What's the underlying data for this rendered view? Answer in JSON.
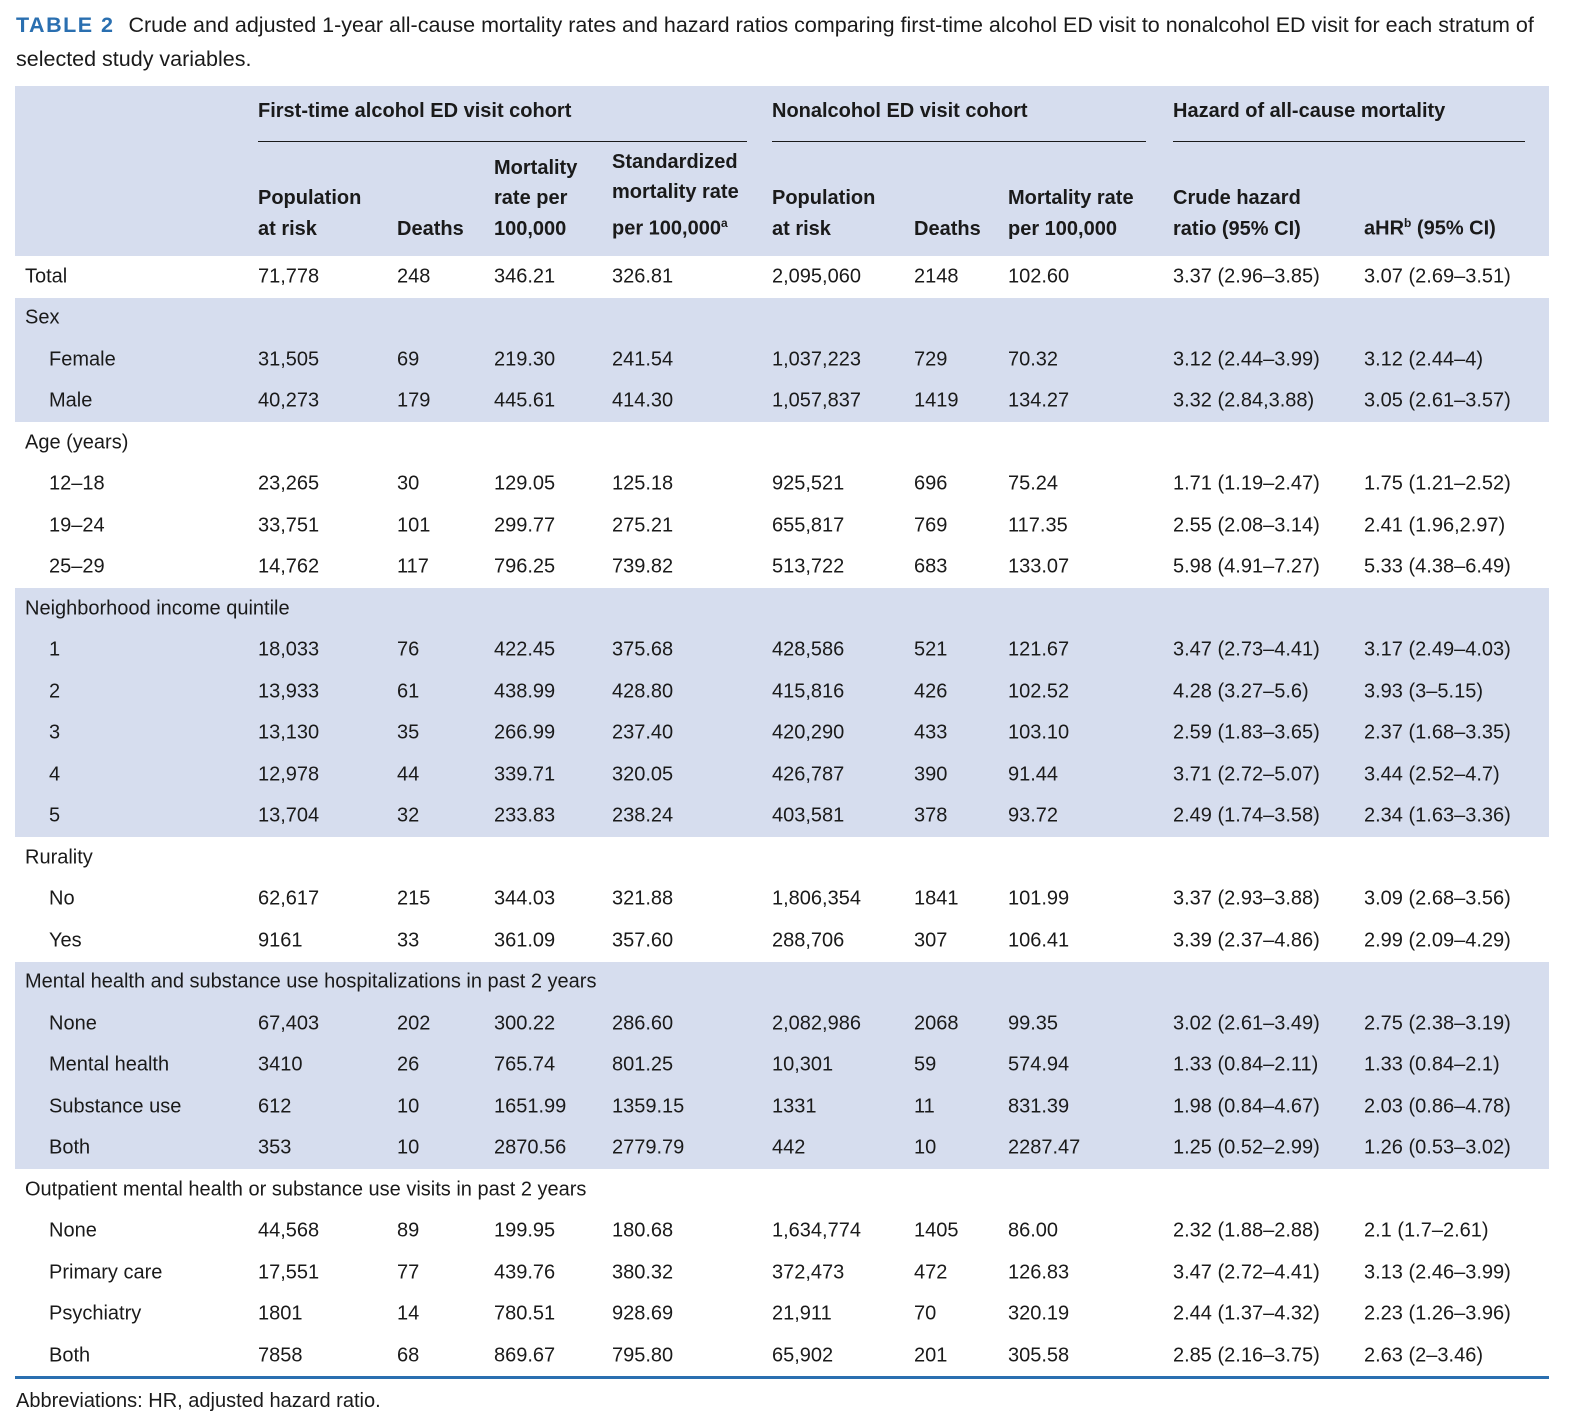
{
  "caption": {
    "label": "TABLE 2",
    "text": "Crude and adjusted 1-year all-cause mortality rates and hazard ratios comparing first-time alcohol ED visit to nonalcohol ED visit for each stratum of selected study variables."
  },
  "groups": {
    "alcohol": "First-time alcohol ED visit cohort",
    "nonalcohol": "Nonalcohol ED visit cohort",
    "hazard": "Hazard of all-cause mortality"
  },
  "columns": {
    "c1_l1": "Population",
    "c1_l2": "at risk",
    "c2_l1": "Deaths",
    "c3_l1": "Mortality",
    "c3_l2": "rate per",
    "c3_l3": "100,000",
    "c4_l1": "Standardized",
    "c4_l2": "mortality rate",
    "c4_l3": "per 100,000",
    "c4_sup": "a",
    "c5_l1": "Population",
    "c5_l2": "at risk",
    "c6_l1": "Deaths",
    "c7_l1": "Mortality rate",
    "c7_l2": "per 100,000",
    "c8_l1": "Crude hazard",
    "c8_l2": "ratio (95% CI)",
    "c9_pre": "aHR",
    "c9_sup": "b",
    "c9_post": " (95% CI)"
  },
  "rows": [
    {
      "type": "total",
      "label": "Total",
      "v": [
        "71,778",
        "248",
        "346.21",
        "326.81",
        "2,095,060",
        "2148",
        "102.60",
        "3.37 (2.96–3.85)",
        "3.07 (2.69–3.51)"
      ]
    },
    {
      "type": "section",
      "label": "Sex"
    },
    {
      "type": "sub",
      "label": "Female",
      "v": [
        "31,505",
        "69",
        "219.30",
        "241.54",
        "1,037,223",
        "729",
        "70.32",
        "3.12 (2.44–3.99)",
        "3.12 (2.44–4)"
      ]
    },
    {
      "type": "sub",
      "label": "Male",
      "v": [
        "40,273",
        "179",
        "445.61",
        "414.30",
        "1,057,837",
        "1419",
        "134.27",
        "3.32 (2.84,3.88)",
        "3.05 (2.61–3.57)"
      ]
    },
    {
      "type": "section",
      "label": "Age (years)"
    },
    {
      "type": "sub",
      "label": "12–18",
      "v": [
        "23,265",
        "30",
        "129.05",
        "125.18",
        "925,521",
        "696",
        "75.24",
        "1.71 (1.19–2.47)",
        "1.75 (1.21–2.52)"
      ]
    },
    {
      "type": "sub",
      "label": "19–24",
      "v": [
        "33,751",
        "101",
        "299.77",
        "275.21",
        "655,817",
        "769",
        "117.35",
        "2.55 (2.08–3.14)",
        "2.41 (1.96,2.97)"
      ]
    },
    {
      "type": "sub",
      "label": "25–29",
      "v": [
        "14,762",
        "117",
        "796.25",
        "739.82",
        "513,722",
        "683",
        "133.07",
        "5.98 (4.91–7.27)",
        "5.33 (4.38–6.49)"
      ]
    },
    {
      "type": "section",
      "label": "Neighborhood income quintile"
    },
    {
      "type": "sub",
      "label": "1",
      "v": [
        "18,033",
        "76",
        "422.45",
        "375.68",
        "428,586",
        "521",
        "121.67",
        "3.47 (2.73–4.41)",
        "3.17 (2.49–4.03)"
      ]
    },
    {
      "type": "sub",
      "label": "2",
      "v": [
        "13,933",
        "61",
        "438.99",
        "428.80",
        "415,816",
        "426",
        "102.52",
        "4.28 (3.27–5.6)",
        "3.93 (3–5.15)"
      ]
    },
    {
      "type": "sub",
      "label": "3",
      "v": [
        "13,130",
        "35",
        "266.99",
        "237.40",
        "420,290",
        "433",
        "103.10",
        "2.59 (1.83–3.65)",
        "2.37 (1.68–3.35)"
      ]
    },
    {
      "type": "sub",
      "label": "4",
      "v": [
        "12,978",
        "44",
        "339.71",
        "320.05",
        "426,787",
        "390",
        "91.44",
        "3.71 (2.72–5.07)",
        "3.44 (2.52–4.7)"
      ]
    },
    {
      "type": "sub",
      "label": "5",
      "v": [
        "13,704",
        "32",
        "233.83",
        "238.24",
        "403,581",
        "378",
        "93.72",
        "2.49 (1.74–3.58)",
        "2.34 (1.63–3.36)"
      ]
    },
    {
      "type": "section",
      "label": "Rurality"
    },
    {
      "type": "sub",
      "label": "No",
      "v": [
        "62,617",
        "215",
        "344.03",
        "321.88",
        "1,806,354",
        "1841",
        "101.99",
        "3.37 (2.93–3.88)",
        "3.09 (2.68–3.56)"
      ]
    },
    {
      "type": "sub",
      "label": "Yes",
      "v": [
        "9161",
        "33",
        "361.09",
        "357.60",
        "288,706",
        "307",
        "106.41",
        "3.39 (2.37–4.86)",
        "2.99 (2.09–4.29)"
      ]
    },
    {
      "type": "section",
      "label": "Mental health and substance use hospitalizations in past 2 years"
    },
    {
      "type": "sub",
      "label": "None",
      "v": [
        "67,403",
        "202",
        "300.22",
        "286.60",
        "2,082,986",
        "2068",
        "99.35",
        "3.02 (2.61–3.49)",
        "2.75 (2.38–3.19)"
      ]
    },
    {
      "type": "sub",
      "label": "Mental health",
      "v": [
        "3410",
        "26",
        "765.74",
        "801.25",
        "10,301",
        "59",
        "574.94",
        "1.33 (0.84–2.11)",
        "1.33 (0.84–2.1)"
      ]
    },
    {
      "type": "sub",
      "label": "Substance use",
      "v": [
        "612",
        "10",
        "1651.99",
        "1359.15",
        "1331",
        "11",
        "831.39",
        "1.98 (0.84–4.67)",
        "2.03 (0.86–4.78)"
      ]
    },
    {
      "type": "sub",
      "label": "Both",
      "v": [
        "353",
        "10",
        "2870.56",
        "2779.79",
        "442",
        "10",
        "2287.47",
        "1.25 (0.52–2.99)",
        "1.26 (0.53–3.02)"
      ]
    },
    {
      "type": "section",
      "label": "Outpatient mental health or substance use visits in past 2 years"
    },
    {
      "type": "sub",
      "label": "None",
      "v": [
        "44,568",
        "89",
        "199.95",
        "180.68",
        "1,634,774",
        "1405",
        "86.00",
        "2.32 (1.88–2.88)",
        "2.1 (1.7–2.61)"
      ]
    },
    {
      "type": "sub",
      "label": "Primary care",
      "v": [
        "17,551",
        "77",
        "439.76",
        "380.32",
        "372,473",
        "472",
        "126.83",
        "3.47 (2.72–4.41)",
        "3.13 (2.46–3.99)"
      ]
    },
    {
      "type": "sub",
      "label": "Psychiatry",
      "v": [
        "1801",
        "14",
        "780.51",
        "928.69",
        "21,911",
        "70",
        "320.19",
        "2.44 (1.37–4.32)",
        "2.23 (1.26–3.96)"
      ]
    },
    {
      "type": "sub",
      "label": "Both",
      "v": [
        "7858",
        "68",
        "869.67",
        "795.80",
        "65,902",
        "201",
        "305.58",
        "2.85 (2.16–3.75)",
        "2.63 (2–3.46)"
      ]
    }
  ],
  "footnote": "Abbreviations: HR, adjusted hazard ratio."
}
